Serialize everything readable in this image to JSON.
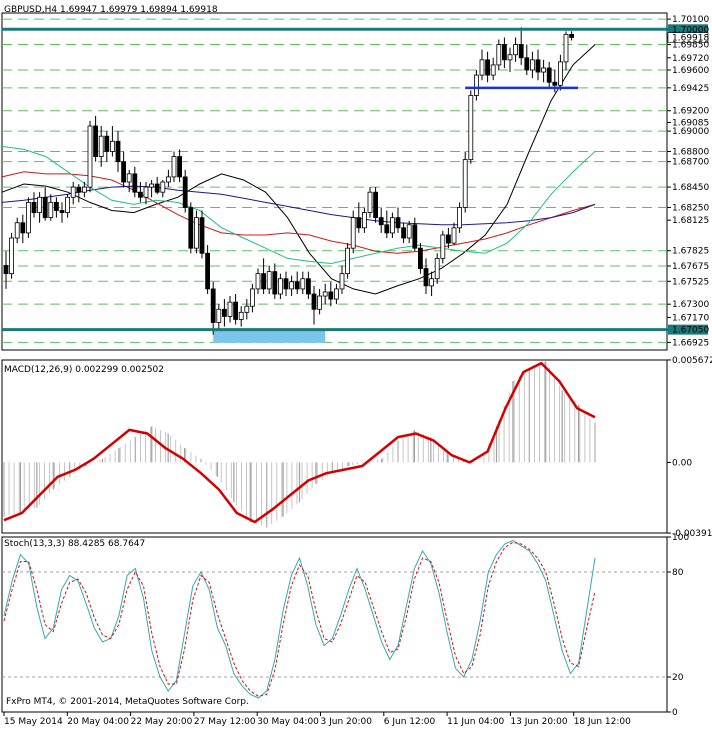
{
  "chart_data": [
    {
      "type": "candlestick",
      "panel": "price",
      "header": {
        "symbol": "GBPUSD,H4",
        "open": "1.69947",
        "high": "1.69979",
        "low": "1.69894",
        "close": "1.69918"
      },
      "ylim": [
        1.6685,
        1.7016
      ],
      "price_axis_labels": [
        "1.70100",
        "1.70000",
        "1.69918",
        "1.69850",
        "1.69720",
        "1.69600",
        "1.69425",
        "1.69200",
        "1.69085",
        "1.69000",
        "1.68800",
        "1.68700",
        "1.68450",
        "1.68250",
        "1.68125",
        "1.67825",
        "1.67675",
        "1.67525",
        "1.67300",
        "1.67170",
        "1.67050",
        "1.66925"
      ],
      "support_resistance_levels": [
        1.701,
        1.6985,
        1.696,
        1.69425,
        1.692,
        1.69,
        1.688,
        1.687,
        1.6845,
        1.6825,
        1.67825,
        1.67675,
        1.67525,
        1.673,
        1.66925
      ],
      "horizontal_lines": [
        {
          "value": 1.7,
          "color": "#1a7a7a"
        },
        {
          "value": 1.6705,
          "color": "#1a7a7a"
        },
        {
          "value": 1.69425,
          "color": "#1a33d6",
          "from_bar": 82,
          "to_bar": 100
        }
      ],
      "highlight_box": {
        "from_bar": 37,
        "to_bar": 57,
        "from": 1.6705,
        "to": 1.6692,
        "color": "#7cc4ec"
      },
      "candles": [
        [
          1.6768,
          1.6782,
          1.6745,
          1.676
        ],
        [
          1.676,
          1.68,
          1.6755,
          1.6795
        ],
        [
          1.6795,
          1.6815,
          1.679,
          1.681
        ],
        [
          1.681,
          1.6818,
          1.679,
          1.68
        ],
        [
          1.68,
          1.6835,
          1.6795,
          1.683
        ],
        [
          1.683,
          1.684,
          1.6815,
          1.682
        ],
        [
          1.682,
          1.684,
          1.681,
          1.6835
        ],
        [
          1.6835,
          1.6845,
          1.6812,
          1.6815
        ],
        [
          1.6815,
          1.6838,
          1.6812,
          1.683
        ],
        [
          1.683,
          1.6835,
          1.6815,
          1.6822
        ],
        [
          1.6822,
          1.683,
          1.681,
          1.682
        ],
        [
          1.682,
          1.6838,
          1.6815,
          1.6835
        ],
        [
          1.6835,
          1.685,
          1.6828,
          1.6845
        ],
        [
          1.6845,
          1.6848,
          1.683,
          1.684
        ],
        [
          1.684,
          1.685,
          1.6835,
          1.6845
        ],
        [
          1.6845,
          1.691,
          1.684,
          1.6905
        ],
        [
          1.6905,
          1.6915,
          1.687,
          1.6875
        ],
        [
          1.6875,
          1.6905,
          1.6865,
          1.6895
        ],
        [
          1.6895,
          1.69,
          1.687,
          1.688
        ],
        [
          1.688,
          1.6905,
          1.6875,
          1.689
        ],
        [
          1.689,
          1.69,
          1.686,
          1.687
        ],
        [
          1.687,
          1.688,
          1.6845,
          1.685
        ],
        [
          1.685,
          1.6862,
          1.684,
          1.6858
        ],
        [
          1.6858,
          1.6865,
          1.6835,
          1.684
        ],
        [
          1.684,
          1.685,
          1.683,
          1.6835
        ],
        [
          1.6835,
          1.685,
          1.6828,
          1.6845
        ],
        [
          1.6845,
          1.6852,
          1.6835,
          1.6848
        ],
        [
          1.6848,
          1.6855,
          1.6838,
          1.684
        ],
        [
          1.684,
          1.6852,
          1.6835,
          1.685
        ],
        [
          1.685,
          1.6862,
          1.6845,
          1.6855
        ],
        [
          1.6855,
          1.688,
          1.685,
          1.6875
        ],
        [
          1.6875,
          1.6882,
          1.685,
          1.6855
        ],
        [
          1.6855,
          1.6862,
          1.682,
          1.6825
        ],
        [
          1.6825,
          1.683,
          1.678,
          1.6785
        ],
        [
          1.6785,
          1.6822,
          1.678,
          1.6815
        ],
        [
          1.6815,
          1.6822,
          1.6775,
          1.678
        ],
        [
          1.678,
          1.6788,
          1.674,
          1.6745
        ],
        [
          1.6745,
          1.6752,
          1.67,
          1.6712
        ],
        [
          1.6712,
          1.673,
          1.6705,
          1.6725
        ],
        [
          1.6725,
          1.6735,
          1.6708,
          1.6718
        ],
        [
          1.6718,
          1.6738,
          1.6712,
          1.6732
        ],
        [
          1.6732,
          1.674,
          1.671,
          1.6715
        ],
        [
          1.6715,
          1.6728,
          1.6708,
          1.6722
        ],
        [
          1.6722,
          1.6735,
          1.6715,
          1.6728
        ],
        [
          1.6728,
          1.675,
          1.6722,
          1.6745
        ],
        [
          1.6745,
          1.6765,
          1.674,
          1.676
        ],
        [
          1.676,
          1.6775,
          1.674,
          1.6745
        ],
        [
          1.6745,
          1.6768,
          1.674,
          1.6762
        ],
        [
          1.6762,
          1.677,
          1.6735,
          1.674
        ],
        [
          1.674,
          1.676,
          1.6735,
          1.6755
        ],
        [
          1.6755,
          1.6762,
          1.6738,
          1.6745
        ],
        [
          1.6745,
          1.6758,
          1.6738,
          1.6752
        ],
        [
          1.6752,
          1.6762,
          1.674,
          1.6745
        ],
        [
          1.6745,
          1.6762,
          1.674,
          1.6755
        ],
        [
          1.6755,
          1.6762,
          1.6735,
          1.674
        ],
        [
          1.674,
          1.6748,
          1.671,
          1.6725
        ],
        [
          1.6725,
          1.6745,
          1.672,
          1.6738
        ],
        [
          1.6738,
          1.675,
          1.673,
          1.6742
        ],
        [
          1.6742,
          1.6752,
          1.6728,
          1.6735
        ],
        [
          1.6735,
          1.675,
          1.673,
          1.6745
        ],
        [
          1.6745,
          1.6768,
          1.674,
          1.676
        ],
        [
          1.676,
          1.679,
          1.6755,
          1.6785
        ],
        [
          1.6785,
          1.6822,
          1.678,
          1.6815
        ],
        [
          1.6815,
          1.683,
          1.68,
          1.6805
        ],
        [
          1.6805,
          1.6825,
          1.68,
          1.682
        ],
        [
          1.682,
          1.6845,
          1.6815,
          1.684
        ],
        [
          1.684,
          1.6845,
          1.681,
          1.6815
        ],
        [
          1.6815,
          1.6825,
          1.68,
          1.6808
        ],
        [
          1.6808,
          1.6822,
          1.6795,
          1.68
        ],
        [
          1.68,
          1.682,
          1.6795,
          1.6815
        ],
        [
          1.6815,
          1.6825,
          1.68,
          1.6805
        ],
        [
          1.6805,
          1.681,
          1.679,
          1.6795
        ],
        [
          1.6795,
          1.6812,
          1.679,
          1.6808
        ],
        [
          1.6808,
          1.6815,
          1.6782,
          1.6785
        ],
        [
          1.6785,
          1.679,
          1.676,
          1.6765
        ],
        [
          1.6765,
          1.6775,
          1.674,
          1.6748
        ],
        [
          1.6748,
          1.6762,
          1.6738,
          1.6755
        ],
        [
          1.6755,
          1.678,
          1.675,
          1.6775
        ],
        [
          1.6775,
          1.6802,
          1.677,
          1.6798
        ],
        [
          1.6798,
          1.6805,
          1.6785,
          1.679
        ],
        [
          1.679,
          1.681,
          1.6788,
          1.6805
        ],
        [
          1.6805,
          1.683,
          1.68,
          1.6825
        ],
        [
          1.6825,
          1.688,
          1.682,
          1.6872
        ],
        [
          1.6872,
          1.694,
          1.6868,
          1.6935
        ],
        [
          1.6935,
          1.696,
          1.693,
          1.6955
        ],
        [
          1.6955,
          1.698,
          1.695,
          1.697
        ],
        [
          1.697,
          1.6978,
          1.6948,
          1.6955
        ],
        [
          1.6955,
          1.6972,
          1.695,
          1.6965
        ],
        [
          1.6965,
          1.699,
          1.696,
          1.6985
        ],
        [
          1.6985,
          1.6992,
          1.6962,
          1.697
        ],
        [
          1.697,
          1.6982,
          1.6958,
          1.6975
        ],
        [
          1.6975,
          1.6992,
          1.6968,
          1.6985
        ],
        [
          1.6985,
          1.7002,
          1.6965,
          1.6972
        ],
        [
          1.6972,
          1.6985,
          1.6955,
          1.696
        ],
        [
          1.696,
          1.6978,
          1.6952,
          1.697
        ],
        [
          1.697,
          1.698,
          1.695,
          1.6958
        ],
        [
          1.6958,
          1.697,
          1.6948,
          1.6962
        ],
        [
          1.6962,
          1.6968,
          1.6942,
          1.6948
        ],
        [
          1.6948,
          1.696,
          1.6938,
          1.6945
        ],
        [
          1.6945,
          1.6975,
          1.694,
          1.6968
        ],
        [
          1.6968,
          1.6998,
          1.696,
          1.6995
        ],
        [
          1.6995,
          1.6998,
          1.6989,
          1.6992
        ]
      ],
      "moving_averages": [
        {
          "color": "#000000",
          "values": [
            1.684,
            1.6848,
            1.6846,
            1.684,
            1.683,
            1.6822,
            1.682,
            1.6828,
            1.6835,
            1.6848,
            1.6858,
            1.6852,
            1.684,
            1.6815,
            1.678,
            1.6755,
            1.6745,
            1.674,
            1.6748,
            1.6755,
            1.6765,
            1.678,
            1.6798,
            1.6828,
            1.688,
            1.693,
            1.6965,
            1.6985
          ]
        },
        {
          "color": "#d01818",
          "values": [
            1.6855,
            1.686,
            1.6858,
            1.6858,
            1.6856,
            1.6852,
            1.6842,
            1.683,
            1.6818,
            1.6808,
            1.68,
            1.6798,
            1.6798,
            1.68,
            1.6798,
            1.6792,
            1.6788,
            1.6782,
            1.678,
            1.6782,
            1.6786,
            1.679,
            1.6794,
            1.68,
            1.6808,
            1.6815,
            1.6822,
            1.6828
          ]
        },
        {
          "color": "#1a1a8c",
          "values": [
            1.683,
            1.6832,
            1.6835,
            1.6838,
            1.6842,
            1.6845,
            1.6846,
            1.6845,
            1.6842,
            1.684,
            1.6838,
            1.6834,
            1.683,
            1.6826,
            1.6822,
            1.6818,
            1.6815,
            1.6812,
            1.681,
            1.6809,
            1.6808,
            1.6808,
            1.6809,
            1.681,
            1.6812,
            1.6815,
            1.682,
            1.6828
          ]
        },
        {
          "color": "#20c080",
          "values": [
            1.6885,
            1.6882,
            1.6875,
            1.686,
            1.6845,
            1.6832,
            1.6828,
            1.6832,
            1.683,
            1.6822,
            1.6805,
            1.6795,
            1.6785,
            1.6775,
            1.6772,
            1.677,
            1.6775,
            1.678,
            1.6785,
            1.6788,
            1.6785,
            1.6782,
            1.678,
            1.679,
            1.681,
            1.6838,
            1.686,
            1.688
          ]
        }
      ]
    },
    {
      "type": "bar+line",
      "panel": "macd",
      "header": {
        "name": "MACD(12,26,9)",
        "main": "0.002299",
        "signal": "0.002502"
      },
      "ylim": [
        -0.00391,
        0.00567
      ],
      "axis_labels": [
        "0.005672",
        "0.00",
        "-0.003914"
      ],
      "histogram": [
        -0.003,
        -0.0028,
        -0.0025,
        -0.0015,
        -0.0008,
        -0.0002,
        0.0002,
        0.0008,
        0.0014,
        0.002,
        0.0016,
        0.0008,
        0.0002,
        -0.0008,
        -0.0022,
        -0.0033,
        -0.0036,
        -0.003,
        -0.0022,
        -0.0012,
        -0.0006,
        -0.0002,
        0.0,
        0.0002,
        0.0012,
        0.0018,
        0.0014,
        0.0006,
        0.0001,
        0.0,
        0.002,
        0.0045,
        0.0052,
        0.0056,
        0.004,
        0.0032,
        0.0022
      ],
      "signal": [
        -0.0032,
        -0.0028,
        -0.0018,
        -0.0008,
        -0.0004,
        0.0002,
        0.001,
        0.0018,
        0.0016,
        0.0008,
        0.0002,
        -0.0006,
        -0.0015,
        -0.0028,
        -0.0033,
        -0.0026,
        -0.0018,
        -0.001,
        -0.0006,
        -0.0004,
        -0.0002,
        0.0006,
        0.0014,
        0.0016,
        0.0012,
        0.0004,
        0.0,
        0.0006,
        0.003,
        0.005,
        0.0055,
        0.0045,
        0.003,
        0.0025
      ]
    },
    {
      "type": "line",
      "panel": "stochastic",
      "header": {
        "name": "Stoch(13,3,3)",
        "main": "88.4285",
        "signal": "68.7647"
      },
      "ylim": [
        0,
        100
      ],
      "axis_labels": [
        "100",
        "80",
        "20",
        "0"
      ],
      "levels": [
        80,
        20
      ],
      "series": [
        {
          "color": "#3aa6b0",
          "values": [
            55,
            75,
            90,
            85,
            60,
            42,
            48,
            70,
            78,
            75,
            62,
            48,
            40,
            42,
            55,
            78,
            82,
            65,
            35,
            20,
            12,
            18,
            45,
            72,
            80,
            70,
            48,
            38,
            22,
            15,
            10,
            8,
            12,
            30,
            58,
            78,
            88,
            72,
            50,
            38,
            42,
            55,
            70,
            82,
            70,
            55,
            40,
            30,
            38,
            60,
            82,
            92,
            85,
            68,
            45,
            25,
            20,
            30,
            52,
            80,
            90,
            96,
            98,
            95,
            92,
            85,
            75,
            55,
            35,
            22,
            28,
            58,
            88
          ]
        },
        {
          "color": "#c81818",
          "values": [
            52,
            70,
            86,
            86,
            70,
            50,
            46,
            62,
            74,
            76,
            68,
            54,
            44,
            42,
            50,
            70,
            80,
            72,
            45,
            26,
            16,
            16,
            36,
            64,
            78,
            74,
            56,
            42,
            28,
            18,
            12,
            9,
            10,
            24,
            50,
            72,
            84,
            78,
            58,
            42,
            40,
            50,
            64,
            78,
            74,
            60,
            46,
            34,
            36,
            54,
            76,
            88,
            86,
            74,
            52,
            32,
            22,
            26,
            44,
            72,
            86,
            94,
            97,
            96,
            93,
            88,
            80,
            62,
            42,
            28,
            26,
            48,
            69
          ]
        }
      ]
    }
  ],
  "time_labels": [
    "15 May 2014",
    "20 May 04:00",
    "22 May 20:00",
    "27 May 12:00",
    "30 May 04:00",
    "3 Jun 20:00",
    "6 Jun 12:00",
    "11 Jun 04:00",
    "13 Jun 20:00",
    "18 Jun 12:00"
  ],
  "copyright": "FxPro MT4, © 2001-2014, MetaQuotes Software Corp."
}
